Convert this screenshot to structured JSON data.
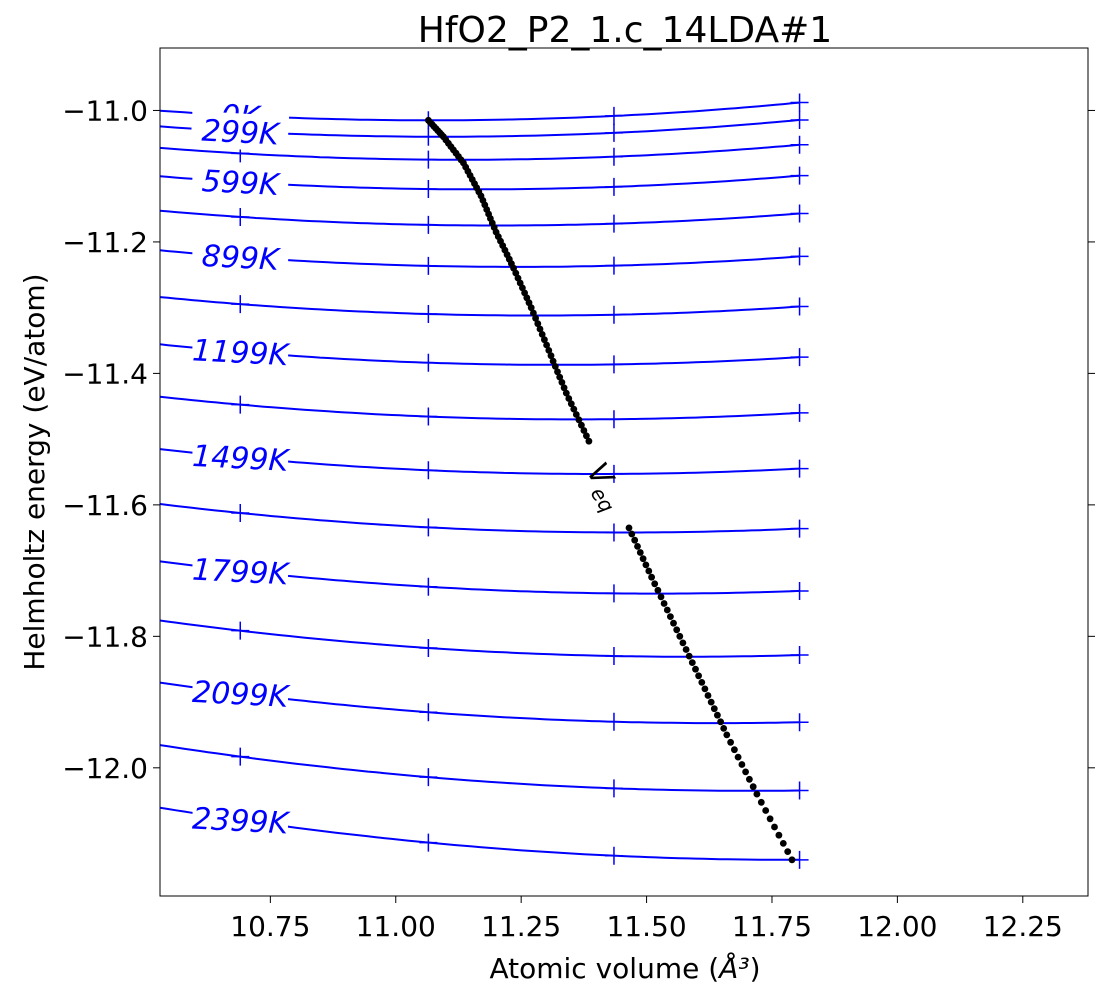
{
  "chart_data": {
    "type": "line",
    "title": "HfO2_P2_1.c_14LDA#1",
    "xlabel": "Atomic volume (",
    "xlabel_unit": "Å³",
    "xlabel_suffix": ")",
    "ylabel": "Helmholtz energy (eV/atom)",
    "xlim": [
      10.53,
      12.38
    ],
    "ylim": [
      -12.195,
      -10.905
    ],
    "xticks": [
      10.75,
      11.0,
      11.25,
      11.5,
      11.75,
      12.0,
      12.25
    ],
    "xtick_labels": [
      "10.75",
      "11.00",
      "11.25",
      "11.50",
      "11.75",
      "12.00",
      "12.25"
    ],
    "yticks": [
      -11.0,
      -11.2,
      -11.4,
      -11.6,
      -11.8,
      -12.0
    ],
    "ytick_labels": [
      "−11.0",
      "−11.2",
      "−11.4",
      "−11.6",
      "−11.8",
      "−12.0"
    ],
    "grid": false,
    "marker_x": [
      10.69,
      11.065,
      11.435,
      11.805
    ],
    "line_color": "#0000ff",
    "veq_color": "#000000",
    "curve_x_range": [
      10.53,
      11.805
    ],
    "series": [
      {
        "name": "0K",
        "T": 0,
        "V0": 11.07,
        "F0": -11.015,
        "c": 0.05
      },
      {
        "name": "299K",
        "T": 299,
        "V0": 11.09,
        "F0": -11.04,
        "c": 0.05
      },
      {
        "name": "",
        "T": 449,
        "V0": 11.13,
        "F0": -11.075,
        "c": 0.05
      },
      {
        "name": "599K",
        "T": 599,
        "V0": 11.16,
        "F0": -11.12,
        "c": 0.05
      },
      {
        "name": "",
        "T": 749,
        "V0": 11.2,
        "F0": -11.175,
        "c": 0.05
      },
      {
        "name": "899K",
        "T": 899,
        "V0": 11.24,
        "F0": -11.238,
        "c": 0.05
      },
      {
        "name": "",
        "T": 1049,
        "V0": 11.28,
        "F0": -11.312,
        "c": 0.05
      },
      {
        "name": "1199K",
        "T": 1199,
        "V0": 11.32,
        "F0": -11.387,
        "c": 0.05
      },
      {
        "name": "",
        "T": 1349,
        "V0": 11.36,
        "F0": -11.47,
        "c": 0.05
      },
      {
        "name": "1499K",
        "T": 1499,
        "V0": 11.4,
        "F0": -11.553,
        "c": 0.05
      },
      {
        "name": "",
        "T": 1649,
        "V0": 11.46,
        "F0": -11.642,
        "c": 0.05
      },
      {
        "name": "1799K",
        "T": 1799,
        "V0": 11.52,
        "F0": -11.735,
        "c": 0.05
      },
      {
        "name": "",
        "T": 1949,
        "V0": 11.58,
        "F0": -11.831,
        "c": 0.05
      },
      {
        "name": "2099K",
        "T": 2099,
        "V0": 11.64,
        "F0": -11.932,
        "c": 0.05
      },
      {
        "name": "",
        "T": 2249,
        "V0": 11.71,
        "F0": -12.035,
        "c": 0.05
      },
      {
        "name": "2399K",
        "T": 2399,
        "V0": 11.79,
        "F0": -12.14,
        "c": 0.05
      }
    ],
    "veq_curve": {
      "name": "V",
      "subscript": "eq",
      "points": [
        [
          11.065,
          -11.015
        ],
        [
          11.095,
          -11.04
        ],
        [
          11.135,
          -11.08
        ],
        [
          11.17,
          -11.13
        ],
        [
          11.2,
          -11.185
        ],
        [
          11.235,
          -11.24
        ],
        [
          11.27,
          -11.3
        ],
        [
          11.305,
          -11.365
        ],
        [
          11.34,
          -11.43
        ],
        [
          11.38,
          -11.495
        ],
        [
          11.42,
          -11.56
        ],
        [
          11.465,
          -11.635
        ],
        [
          11.51,
          -11.71
        ],
        [
          11.56,
          -11.79
        ],
        [
          11.61,
          -11.87
        ],
        [
          11.66,
          -11.95
        ],
        [
          11.72,
          -12.04
        ],
        [
          11.79,
          -12.14
        ]
      ]
    },
    "annotations": [
      "V",
      "eq"
    ]
  }
}
